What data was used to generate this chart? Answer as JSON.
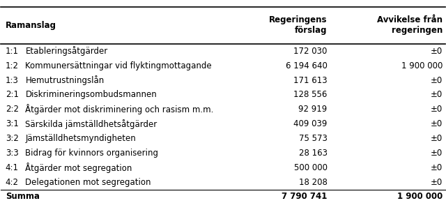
{
  "header_col1": "Ramanslag",
  "header_col2": "Regeringens\nförslag",
  "header_col3": "Avvikelse från\nregeringen",
  "rows": [
    [
      "1:1",
      "Etableringsåtgärder",
      "172 030",
      "±0"
    ],
    [
      "1:2",
      "Kommunersättningar vid flyktingmottagande",
      "6 194 640",
      "1 900 000"
    ],
    [
      "1:3",
      "Hemutrustningslån",
      "171 613",
      "±0"
    ],
    [
      "2:1",
      "Diskrimineringsombudsmannen",
      "128 556",
      "±0"
    ],
    [
      "2:2",
      "Åtgärder mot diskriminering och rasism m.m.",
      "92 919",
      "±0"
    ],
    [
      "3:1",
      "Särskilda jämställdhetsåtgärder",
      "409 039",
      "±0"
    ],
    [
      "3:2",
      "Jämställdhetsmyndigheten",
      "75 573",
      "±0"
    ],
    [
      "3:3",
      "Bidrag för kvinnors organisering",
      "28 163",
      "±0"
    ],
    [
      "4:1",
      "Åtgärder mot segregation",
      "500 000",
      "±0"
    ],
    [
      "4:2",
      "Delegationen mot segregation",
      "18 208",
      "±0"
    ]
  ],
  "footer": [
    "Summa",
    "7 790 741",
    "1 900 000"
  ],
  "bg_color": "#ffffff",
  "text_color": "#000000",
  "line_color": "#000000",
  "font_size": 8.5,
  "header_font_size": 8.5
}
